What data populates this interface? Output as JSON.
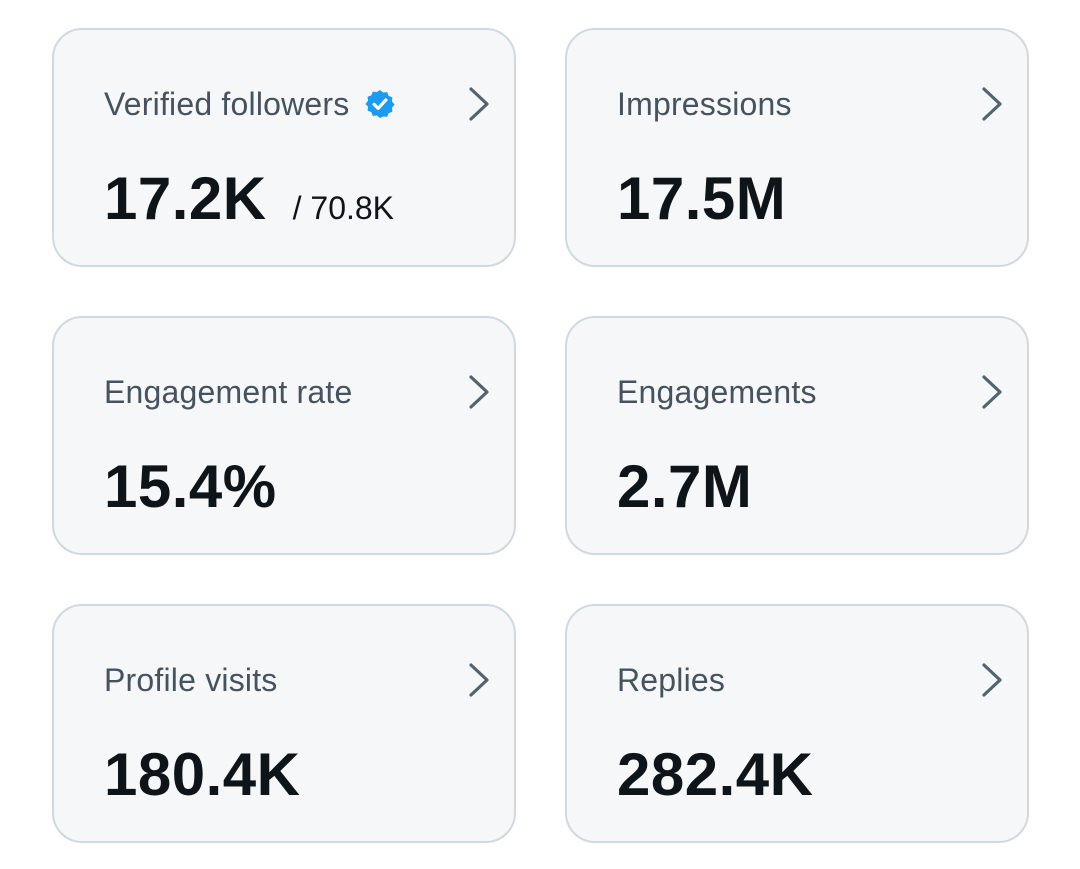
{
  "cards": [
    {
      "label": "Verified followers",
      "value": "17.2K",
      "sub": "/ 70.8K",
      "icons": [
        "verified-badge-icon",
        "chevron-right-icon"
      ]
    },
    {
      "label": "Impressions",
      "value": "17.5M",
      "icons": [
        "chevron-right-icon"
      ]
    },
    {
      "label": "Engagement rate",
      "value": "15.4%",
      "icons": [
        "chevron-right-icon"
      ]
    },
    {
      "label": "Engagements",
      "value": "2.7M",
      "icons": [
        "chevron-right-icon"
      ]
    },
    {
      "label": "Profile visits",
      "value": "180.4K",
      "icons": [
        "chevron-right-icon"
      ]
    },
    {
      "label": "Replies",
      "value": "282.4K",
      "icons": [
        "chevron-right-icon"
      ]
    }
  ],
  "colors": {
    "card_background": "#f5f7f8",
    "card_border": "#cfd9de",
    "label_text": "#46525d",
    "value_text": "#0f1419",
    "verified_badge": "#1d9bf0",
    "chevron": "#536471"
  }
}
